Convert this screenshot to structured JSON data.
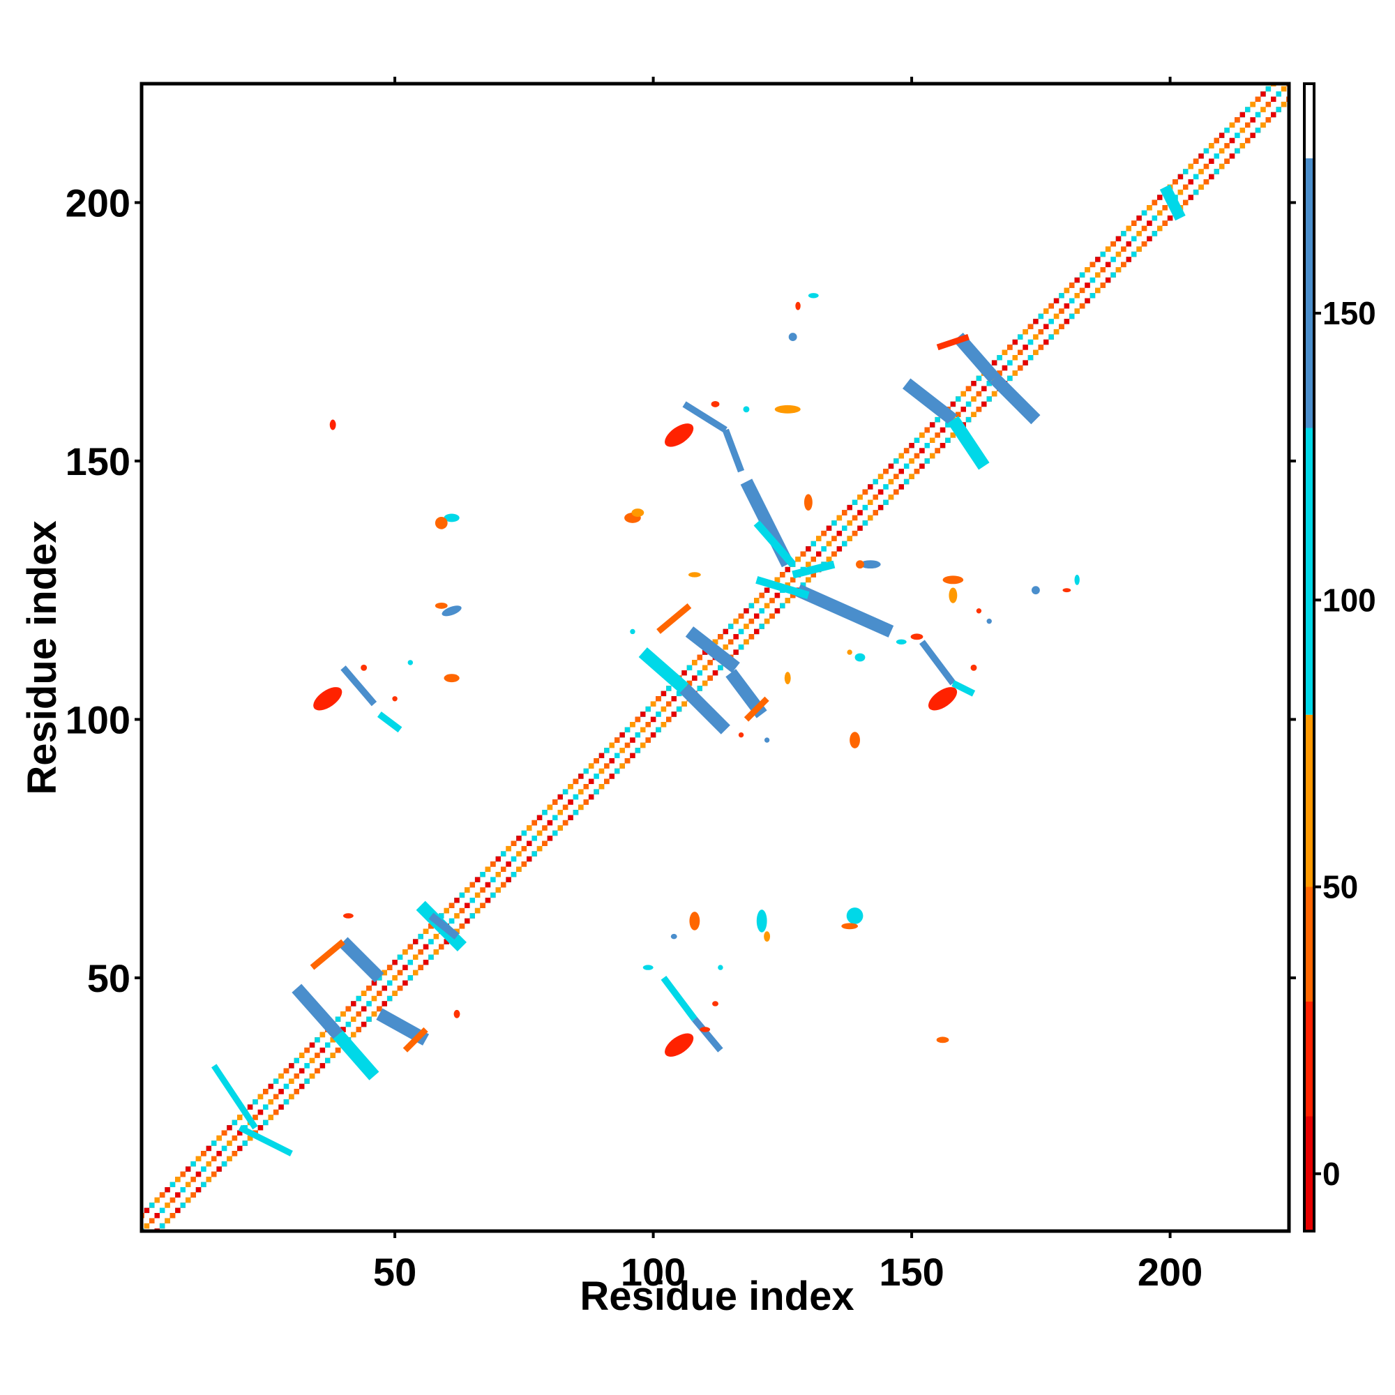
{
  "chart_data": {
    "type": "heatmap",
    "title": "",
    "xlabel": "Residue index",
    "ylabel": "Residue index",
    "xlim": [
      1,
      223
    ],
    "ylim": [
      1,
      223
    ],
    "x_ticks": [
      50,
      100,
      150,
      200
    ],
    "y_ticks": [
      50,
      100,
      150,
      200
    ],
    "grid": false,
    "colorbar": {
      "ticks": [
        0,
        50,
        100,
        150
      ],
      "range": [
        -10,
        190
      ],
      "bands": [
        {
          "from": -10,
          "to": 10,
          "color": "#e60000"
        },
        {
          "from": 10,
          "to": 30,
          "color": "#ff2200"
        },
        {
          "from": 30,
          "to": 50,
          "color": "#ff6600"
        },
        {
          "from": 50,
          "to": 80,
          "color": "#ff9900"
        },
        {
          "from": 80,
          "to": 130,
          "color": "#00d8e8"
        },
        {
          "from": 130,
          "to": 177,
          "color": "#4a8ecc"
        },
        {
          "from": 177,
          "to": 190,
          "color": "#ffffff"
        }
      ]
    },
    "colors": {
      "red": "#e60000",
      "orange_red": "#ff3300",
      "orange": "#ff6600",
      "amber": "#ff9900",
      "cyan": "#00d8e8",
      "blue": "#4a8ecc"
    },
    "diagonal": {
      "from": 1,
      "to": 223,
      "palette": [
        "#e60000",
        "#ff6600",
        "#ff9900",
        "#00d8e8"
      ]
    },
    "features": [
      {
        "kind": "line",
        "x1": 40,
        "y1": 57,
        "x2": 47,
        "y2": 50,
        "color": "#4a8ecc",
        "w": 2.5
      },
      {
        "kind": "line",
        "x1": 47,
        "y1": 43,
        "x2": 56,
        "y2": 38,
        "color": "#4a8ecc",
        "w": 2.5
      },
      {
        "kind": "line",
        "x1": 31,
        "y1": 48,
        "x2": 39,
        "y2": 39,
        "color": "#4a8ecc",
        "w": 2.5
      },
      {
        "kind": "line",
        "x1": 39,
        "y1": 39,
        "x2": 46,
        "y2": 31,
        "color": "#00d8e8",
        "w": 2.5
      },
      {
        "kind": "line",
        "x1": 34,
        "y1": 52,
        "x2": 40,
        "y2": 57,
        "color": "#ff6600",
        "w": 1.2
      },
      {
        "kind": "line",
        "x1": 52,
        "y1": 36,
        "x2": 56,
        "y2": 40,
        "color": "#ff6600",
        "w": 1.2
      },
      {
        "kind": "line",
        "x1": 55,
        "y1": 64,
        "x2": 63,
        "y2": 56,
        "color": "#00d8e8",
        "w": 2.5
      },
      {
        "kind": "line",
        "x1": 57,
        "y1": 62,
        "x2": 62,
        "y2": 58,
        "color": "#4a8ecc",
        "w": 1.5
      },
      {
        "kind": "line",
        "x1": 15,
        "y1": 33,
        "x2": 23,
        "y2": 21,
        "color": "#00d8e8",
        "w": 1.2
      },
      {
        "kind": "line",
        "x1": 20,
        "y1": 21,
        "x2": 30,
        "y2": 16,
        "color": "#00d8e8",
        "w": 1.2
      },
      {
        "kind": "line",
        "x1": 107,
        "y1": 117,
        "x2": 116,
        "y2": 110,
        "color": "#4a8ecc",
        "w": 2.5
      },
      {
        "kind": "line",
        "x1": 115,
        "y1": 109,
        "x2": 121,
        "y2": 101,
        "color": "#4a8ecc",
        "w": 2.5
      },
      {
        "kind": "line",
        "x1": 98,
        "y1": 113,
        "x2": 106,
        "y2": 106,
        "color": "#00d8e8",
        "w": 2.5
      },
      {
        "kind": "line",
        "x1": 106,
        "y1": 106,
        "x2": 114,
        "y2": 98,
        "color": "#4a8ecc",
        "w": 2.5
      },
      {
        "kind": "line",
        "x1": 101,
        "y1": 117,
        "x2": 107,
        "y2": 122,
        "color": "#ff6600",
        "w": 1.2
      },
      {
        "kind": "line",
        "x1": 118,
        "y1": 100,
        "x2": 122,
        "y2": 104,
        "color": "#ff6600",
        "w": 1.2
      },
      {
        "kind": "line",
        "x1": 118,
        "y1": 146,
        "x2": 126,
        "y2": 130,
        "color": "#4a8ecc",
        "w": 2.5
      },
      {
        "kind": "line",
        "x1": 120,
        "y1": 138,
        "x2": 127,
        "y2": 130,
        "color": "#00d8e8",
        "w": 1.5
      },
      {
        "kind": "line",
        "x1": 128,
        "y1": 125,
        "x2": 146,
        "y2": 117,
        "color": "#4a8ecc",
        "w": 2.5
      },
      {
        "kind": "line",
        "x1": 120,
        "y1": 127,
        "x2": 130,
        "y2": 124,
        "color": "#00d8e8",
        "w": 1.5
      },
      {
        "kind": "line",
        "x1": 127,
        "y1": 128,
        "x2": 135,
        "y2": 130,
        "color": "#00d8e8",
        "w": 1.5
      },
      {
        "kind": "line",
        "x1": 159,
        "y1": 174,
        "x2": 166,
        "y2": 166,
        "color": "#4a8ecc",
        "w": 2.5
      },
      {
        "kind": "line",
        "x1": 166,
        "y1": 166,
        "x2": 174,
        "y2": 158,
        "color": "#4a8ecc",
        "w": 2.5
      },
      {
        "kind": "line",
        "x1": 149,
        "y1": 165,
        "x2": 158,
        "y2": 158,
        "color": "#4a8ecc",
        "w": 2.5
      },
      {
        "kind": "line",
        "x1": 158,
        "y1": 158,
        "x2": 164,
        "y2": 149,
        "color": "#00d8e8",
        "w": 2.5
      },
      {
        "kind": "line",
        "x1": 161,
        "y1": 174,
        "x2": 155,
        "y2": 172,
        "color": "#ff3300",
        "w": 1.2
      },
      {
        "kind": "line",
        "x1": 199,
        "y1": 203,
        "x2": 202,
        "y2": 197,
        "color": "#00d8e8",
        "w": 2.2
      },
      {
        "kind": "line",
        "x1": 40,
        "y1": 110,
        "x2": 46,
        "y2": 103,
        "color": "#4a8ecc",
        "w": 1.3
      },
      {
        "kind": "line",
        "x1": 47,
        "y1": 101,
        "x2": 51,
        "y2": 98,
        "color": "#00d8e8",
        "w": 1.3
      },
      {
        "kind": "line",
        "x1": 102,
        "y1": 50,
        "x2": 108,
        "y2": 42,
        "color": "#00d8e8",
        "w": 1.3
      },
      {
        "kind": "line",
        "x1": 108,
        "y1": 42,
        "x2": 113,
        "y2": 36,
        "color": "#4a8ecc",
        "w": 1.3
      },
      {
        "kind": "line",
        "x1": 152,
        "y1": 115,
        "x2": 158,
        "y2": 107,
        "color": "#4a8ecc",
        "w": 1.3
      },
      {
        "kind": "line",
        "x1": 158,
        "y1": 107,
        "x2": 162,
        "y2": 105,
        "color": "#00d8e8",
        "w": 1.3
      },
      {
        "kind": "line",
        "x1": 106,
        "y1": 161,
        "x2": 114,
        "y2": 156,
        "color": "#4a8ecc",
        "w": 1.3
      },
      {
        "kind": "line",
        "x1": 114,
        "y1": 156,
        "x2": 117,
        "y2": 148,
        "color": "#4a8ecc",
        "w": 1.3
      },
      {
        "kind": "blob",
        "x": 37,
        "y": 104,
        "rx": 3.2,
        "ry": 1.6,
        "rot": -35,
        "color": "#ff2200"
      },
      {
        "kind": "blob",
        "x": 105,
        "y": 37,
        "rx": 3.2,
        "ry": 1.6,
        "rot": -35,
        "color": "#ff2200"
      },
      {
        "kind": "blob",
        "x": 156,
        "y": 104,
        "rx": 3.2,
        "ry": 1.6,
        "rot": -35,
        "color": "#ff2200"
      },
      {
        "kind": "blob",
        "x": 105,
        "y": 155,
        "rx": 3.2,
        "ry": 1.6,
        "rot": -35,
        "color": "#ff2200"
      },
      {
        "kind": "blob",
        "x": 61,
        "y": 139,
        "rx": 1.5,
        "ry": 0.8,
        "rot": 0,
        "color": "#00d8e8"
      },
      {
        "kind": "blob",
        "x": 59,
        "y": 138,
        "rx": 1.2,
        "ry": 1.2,
        "rot": 0,
        "color": "#ff6600"
      },
      {
        "kind": "blob",
        "x": 61,
        "y": 121,
        "rx": 2.0,
        "ry": 0.8,
        "rot": -20,
        "color": "#4a8ecc"
      },
      {
        "kind": "blob",
        "x": 59,
        "y": 122,
        "rx": 1.2,
        "ry": 0.6,
        "rot": 0,
        "color": "#ff6600"
      },
      {
        "kind": "blob",
        "x": 61,
        "y": 108,
        "rx": 1.5,
        "ry": 0.8,
        "rot": 0,
        "color": "#ff6600"
      },
      {
        "kind": "blob",
        "x": 139,
        "y": 62,
        "rx": 1.6,
        "ry": 1.6,
        "rot": 0,
        "color": "#00d8e8"
      },
      {
        "kind": "blob",
        "x": 138,
        "y": 60,
        "rx": 1.6,
        "ry": 0.6,
        "rot": 0,
        "color": "#ff6600"
      },
      {
        "kind": "blob",
        "x": 121,
        "y": 61,
        "rx": 1.0,
        "ry": 2.2,
        "rot": 0,
        "color": "#00d8e8"
      },
      {
        "kind": "blob",
        "x": 122,
        "y": 58,
        "rx": 0.6,
        "ry": 1.0,
        "rot": 0,
        "color": "#ff9900"
      },
      {
        "kind": "blob",
        "x": 108,
        "y": 61,
        "rx": 1.0,
        "ry": 1.8,
        "rot": 0,
        "color": "#ff6600"
      },
      {
        "kind": "blob",
        "x": 139,
        "y": 96,
        "rx": 1.0,
        "ry": 1.6,
        "rot": 0,
        "color": "#ff6600"
      },
      {
        "kind": "blob",
        "x": 96,
        "y": 139,
        "rx": 1.6,
        "ry": 1.0,
        "rot": 0,
        "color": "#ff6600"
      },
      {
        "kind": "blob",
        "x": 156,
        "y": 38,
        "rx": 1.2,
        "ry": 0.6,
        "rot": 0,
        "color": "#ff6600"
      },
      {
        "kind": "blob",
        "x": 38,
        "y": 157,
        "rx": 0.6,
        "ry": 1.0,
        "rot": 0,
        "color": "#ff2200"
      },
      {
        "kind": "blob",
        "x": 126,
        "y": 160,
        "rx": 2.5,
        "ry": 0.8,
        "rot": 0,
        "color": "#ff9900"
      },
      {
        "kind": "blob",
        "x": 127,
        "y": 174,
        "rx": 0.8,
        "ry": 0.8,
        "rot": 0,
        "color": "#4a8ecc"
      },
      {
        "kind": "blob",
        "x": 131,
        "y": 182,
        "rx": 1.0,
        "ry": 0.5,
        "rot": 0,
        "color": "#00d8e8"
      },
      {
        "kind": "blob",
        "x": 128,
        "y": 180,
        "rx": 0.5,
        "ry": 0.8,
        "rot": 0,
        "color": "#ff3300"
      },
      {
        "kind": "blob",
        "x": 118,
        "y": 160,
        "rx": 0.6,
        "ry": 0.6,
        "rot": 0,
        "color": "#00d8e8"
      },
      {
        "kind": "blob",
        "x": 112,
        "y": 161,
        "rx": 0.8,
        "ry": 0.6,
        "rot": 0,
        "color": "#ff3300"
      },
      {
        "kind": "blob",
        "x": 158,
        "y": 127,
        "rx": 2.0,
        "ry": 0.8,
        "rot": 0,
        "color": "#ff6600"
      },
      {
        "kind": "blob",
        "x": 158,
        "y": 124,
        "rx": 0.8,
        "ry": 1.5,
        "rot": 0,
        "color": "#ff9900"
      },
      {
        "kind": "blob",
        "x": 174,
        "y": 125,
        "rx": 0.8,
        "ry": 0.8,
        "rot": 0,
        "color": "#4a8ecc"
      },
      {
        "kind": "blob",
        "x": 182,
        "y": 127,
        "rx": 0.5,
        "ry": 1.0,
        "rot": 0,
        "color": "#00d8e8"
      },
      {
        "kind": "blob",
        "x": 180,
        "y": 125,
        "rx": 0.8,
        "ry": 0.4,
        "rot": 0,
        "color": "#ff3300"
      },
      {
        "kind": "blob",
        "x": 142,
        "y": 130,
        "rx": 2.0,
        "ry": 0.8,
        "rot": 0,
        "color": "#4a8ecc"
      },
      {
        "kind": "blob",
        "x": 140,
        "y": 130,
        "rx": 0.8,
        "ry": 0.8,
        "rot": 0,
        "color": "#ff6600"
      },
      {
        "kind": "blob",
        "x": 130,
        "y": 142,
        "rx": 0.8,
        "ry": 1.6,
        "rot": 0,
        "color": "#ff6600"
      },
      {
        "kind": "blob",
        "x": 97,
        "y": 140,
        "rx": 1.2,
        "ry": 0.8,
        "rot": 0,
        "color": "#ff9900"
      },
      {
        "kind": "blob",
        "x": 126,
        "y": 108,
        "rx": 0.6,
        "ry": 1.2,
        "rot": 0,
        "color": "#ff9900"
      },
      {
        "kind": "blob",
        "x": 140,
        "y": 112,
        "rx": 1.0,
        "ry": 0.8,
        "rot": 0,
        "color": "#00d8e8"
      },
      {
        "kind": "blob",
        "x": 138,
        "y": 113,
        "rx": 0.5,
        "ry": 0.5,
        "rot": 0,
        "color": "#ff9900"
      },
      {
        "kind": "blob",
        "x": 151,
        "y": 116,
        "rx": 1.2,
        "ry": 0.6,
        "rot": 0,
        "color": "#ff3300"
      },
      {
        "kind": "blob",
        "x": 148,
        "y": 115,
        "rx": 1.0,
        "ry": 0.5,
        "rot": 0,
        "color": "#00d8e8"
      },
      {
        "kind": "blob",
        "x": 165,
        "y": 119,
        "rx": 0.5,
        "ry": 0.5,
        "rot": 0,
        "color": "#4a8ecc"
      },
      {
        "kind": "blob",
        "x": 163,
        "y": 121,
        "rx": 0.5,
        "ry": 0.5,
        "rot": 0,
        "color": "#ff3300"
      },
      {
        "kind": "blob",
        "x": 162,
        "y": 110,
        "rx": 0.6,
        "ry": 0.6,
        "rot": 0,
        "color": "#ff3300"
      },
      {
        "kind": "blob",
        "x": 122,
        "y": 96,
        "rx": 0.5,
        "ry": 0.5,
        "rot": 0,
        "color": "#4a8ecc"
      },
      {
        "kind": "blob",
        "x": 117,
        "y": 97,
        "rx": 0.5,
        "ry": 0.5,
        "rot": 0,
        "color": "#ff3300"
      },
      {
        "kind": "blob",
        "x": 108,
        "y": 128,
        "rx": 1.2,
        "ry": 0.5,
        "rot": 0,
        "color": "#ff9900"
      },
      {
        "kind": "blob",
        "x": 96,
        "y": 117,
        "rx": 0.5,
        "ry": 0.5,
        "rot": 0,
        "color": "#00d8e8"
      },
      {
        "kind": "blob",
        "x": 104,
        "y": 58,
        "rx": 0.6,
        "ry": 0.5,
        "rot": 0,
        "color": "#4a8ecc"
      },
      {
        "kind": "blob",
        "x": 113,
        "y": 52,
        "rx": 0.5,
        "ry": 0.5,
        "rot": 0,
        "color": "#00d8e8"
      },
      {
        "kind": "blob",
        "x": 112,
        "y": 45,
        "rx": 0.6,
        "ry": 0.5,
        "rot": 0,
        "color": "#ff3300"
      },
      {
        "kind": "blob",
        "x": 110,
        "y": 40,
        "rx": 1.0,
        "ry": 0.5,
        "rot": 0,
        "color": "#ff3300"
      },
      {
        "kind": "blob",
        "x": 99,
        "y": 52,
        "rx": 1.0,
        "ry": 0.5,
        "rot": 0,
        "color": "#00d8e8"
      },
      {
        "kind": "blob",
        "x": 41,
        "y": 62,
        "rx": 1.0,
        "ry": 0.5,
        "rot": 0,
        "color": "#ff3300"
      },
      {
        "kind": "blob",
        "x": 62,
        "y": 43,
        "rx": 0.6,
        "ry": 0.8,
        "rot": 0,
        "color": "#ff3300"
      },
      {
        "kind": "blob",
        "x": 44,
        "y": 110,
        "rx": 0.6,
        "ry": 0.6,
        "rot": 0,
        "color": "#ff3300"
      },
      {
        "kind": "blob",
        "x": 53,
        "y": 111,
        "rx": 0.5,
        "ry": 0.5,
        "rot": 0,
        "color": "#00d8e8"
      },
      {
        "kind": "blob",
        "x": 50,
        "y": 104,
        "rx": 0.5,
        "ry": 0.5,
        "rot": 0,
        "color": "#ff3300"
      },
      {
        "kind": "blob",
        "x": 38,
        "y": 157,
        "rx": 0.5,
        "ry": 1.0,
        "rot": 0,
        "color": "#ff2200"
      }
    ]
  }
}
